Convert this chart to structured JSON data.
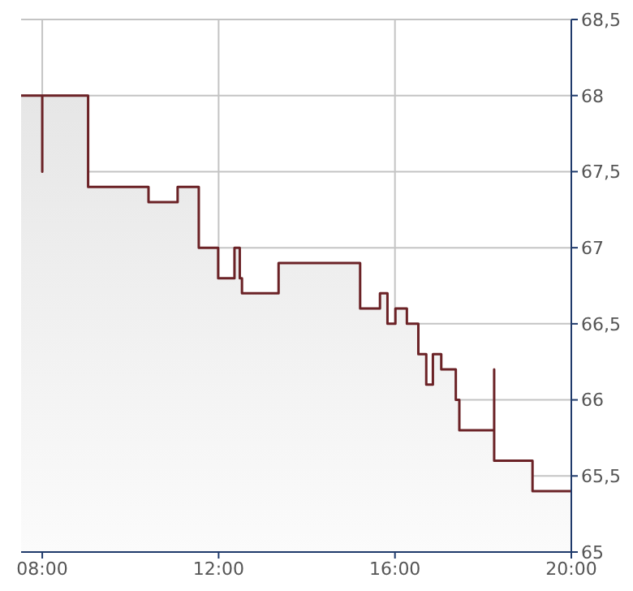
{
  "chart_data": {
    "type": "area",
    "x": [
      7.52,
      8.0,
      8.0,
      8.0,
      9.04,
      9.04,
      10.41,
      10.41,
      11.07,
      11.07,
      11.55,
      11.55,
      11.99,
      11.99,
      12.36,
      12.36,
      12.48,
      12.48,
      12.53,
      12.53,
      13.36,
      13.36,
      15.21,
      15.21,
      15.66,
      15.66,
      15.83,
      15.83,
      16.01,
      16.01,
      16.27,
      16.27,
      16.53,
      16.53,
      16.71,
      16.71,
      16.86,
      16.86,
      17.05,
      17.05,
      17.38,
      17.38,
      17.46,
      17.46,
      18.25,
      18.25,
      18.25,
      19.12,
      19.12,
      20.0
    ],
    "series": [
      {
        "color": "#6b2226",
        "values": [
          68.0,
          68.0,
          67.5,
          68.0,
          68.0,
          67.4,
          67.4,
          67.3,
          67.3,
          67.4,
          67.4,
          67.0,
          67.0,
          66.8,
          66.8,
          67.0,
          67.0,
          66.8,
          66.8,
          66.7,
          66.7,
          66.9,
          66.9,
          66.6,
          66.6,
          66.7,
          66.7,
          66.5,
          66.5,
          66.6,
          66.6,
          66.5,
          66.5,
          66.3,
          66.3,
          66.1,
          66.1,
          66.3,
          66.3,
          66.2,
          66.2,
          66.0,
          66.0,
          65.8,
          65.8,
          66.2,
          65.6,
          65.6,
          65.4,
          65.4
        ]
      }
    ],
    "xlim": [
      7.52,
      20
    ],
    "xticks": [
      {
        "value": 8,
        "label": "08:00"
      },
      {
        "value": 12,
        "label": "12:00"
      },
      {
        "value": 16,
        "label": "16:00"
      },
      {
        "value": 20,
        "label": "20:00"
      }
    ],
    "ylim": [
      65,
      68.5
    ],
    "yticks": [
      65,
      {
        "value": 65.5,
        "label": "65,5"
      },
      66,
      {
        "value": 66.5,
        "label": "66,5"
      },
      67,
      {
        "value": 67.5,
        "label": "67,5"
      },
      68,
      {
        "value": 68.5,
        "label": "68,5"
      }
    ],
    "grid": true,
    "legend": false,
    "marker": "none",
    "line_style": "solid"
  }
}
